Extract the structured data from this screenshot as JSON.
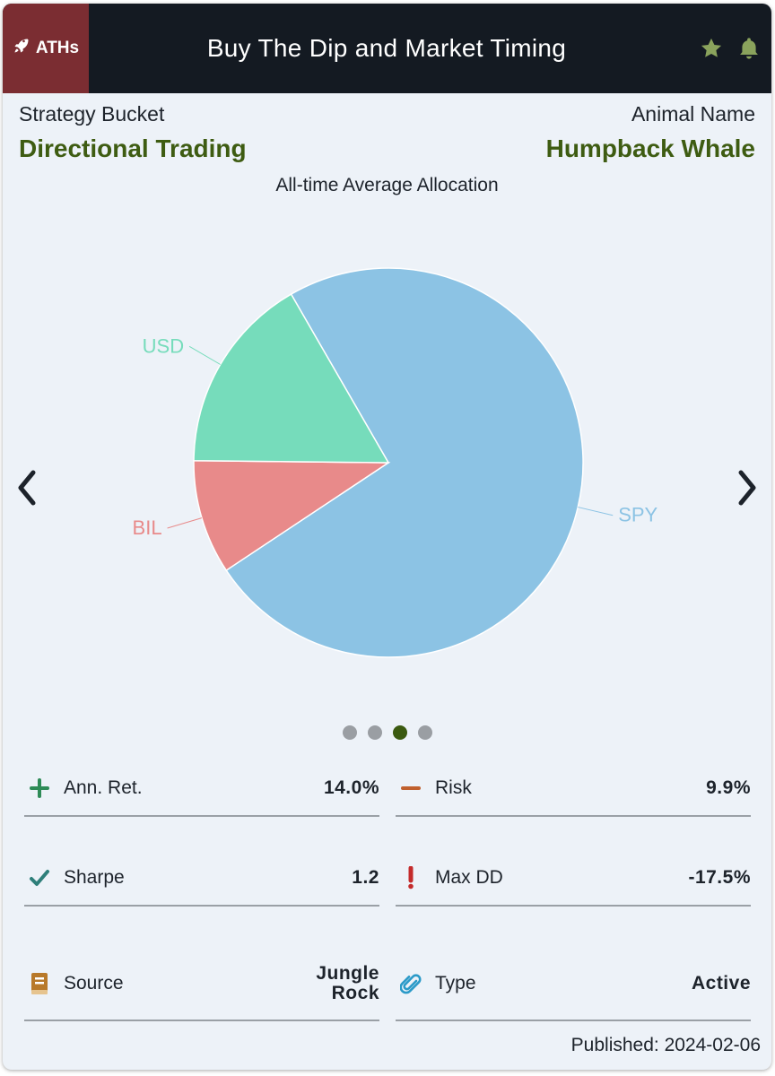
{
  "header": {
    "badge_label": "ATHs",
    "title": "Buy The Dip and Market Timing",
    "icons": [
      "rocket-icon",
      "star-icon",
      "bell-icon"
    ],
    "colors": {
      "bar": "#141a22",
      "badge": "#7b2d32",
      "icon": "#8aa35c"
    }
  },
  "info": {
    "strategy_label": "Strategy Bucket",
    "strategy_value": "Directional Trading",
    "animal_label": "Animal Name",
    "animal_value": "Humpback Whale",
    "accent_color": "#3e5c12"
  },
  "chart_data": {
    "type": "pie",
    "title": "All-time Average Allocation",
    "slices": [
      {
        "label": "SPY",
        "value": 74,
        "color": "#8cc3e4"
      },
      {
        "label": "BIL",
        "value": 9.5,
        "color": "#e88a8a"
      },
      {
        "label": "USD",
        "value": 16.5,
        "color": "#76dcbb"
      }
    ]
  },
  "carousel": {
    "count": 4,
    "active_index": 2
  },
  "stats": [
    {
      "icon": "plus-icon",
      "label": "Ann. Ret.",
      "value": "14.0%"
    },
    {
      "icon": "minus-icon",
      "label": "Risk",
      "value": "9.9%"
    },
    {
      "icon": "check-icon",
      "label": "Sharpe",
      "value": "1.2"
    },
    {
      "icon": "exclamation-icon",
      "label": "Max DD",
      "value": "-17.5%"
    },
    {
      "icon": "book-icon",
      "label": "Source",
      "value": "Jungle Rock"
    },
    {
      "icon": "paperclip-icon",
      "label": "Type",
      "value": "Active"
    }
  ],
  "published": "Published: 2024-02-06"
}
